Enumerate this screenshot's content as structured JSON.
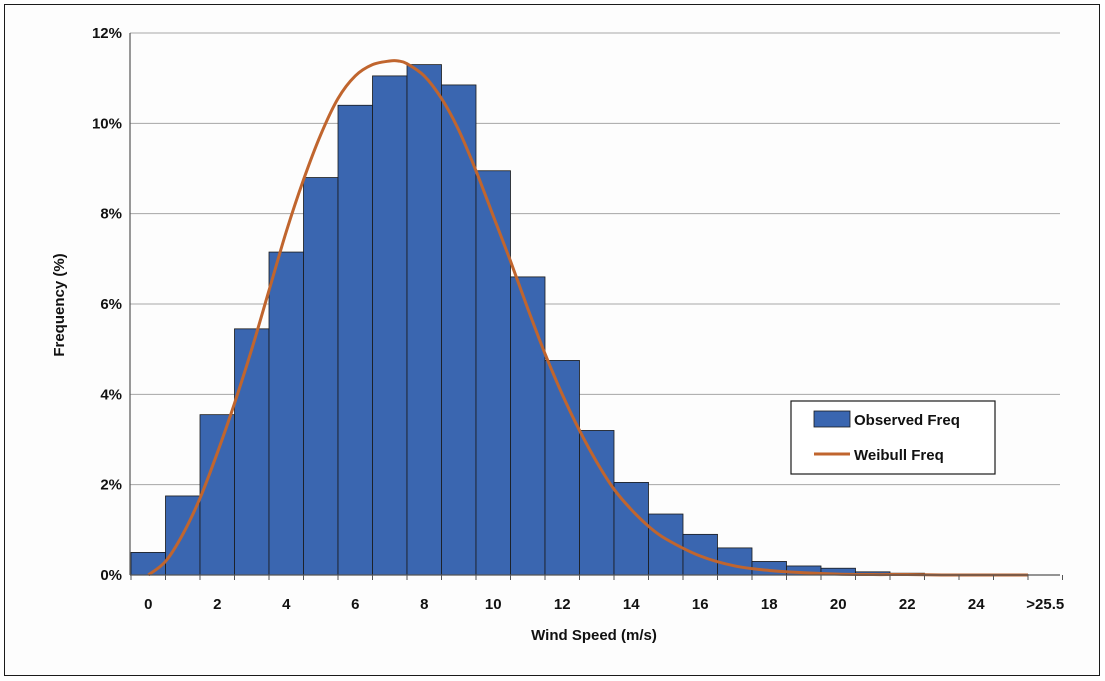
{
  "chart_data": {
    "type": "bar",
    "title": "",
    "xlabel": "Wind Speed (m/s)",
    "ylabel": "Frequency (%)",
    "ylim": [
      0,
      12
    ],
    "yticks": [
      "0%",
      "2%",
      "4%",
      "6%",
      "8%",
      "10%",
      "12%"
    ],
    "xtick_labels": [
      "0",
      "2",
      "4",
      "6",
      "8",
      "10",
      "12",
      "14",
      "16",
      "18",
      "20",
      "22",
      "24",
      ">25.5"
    ],
    "grid": "horizontal",
    "legend_position": "right",
    "categories": [
      "0",
      "1",
      "2",
      "3",
      "4",
      "5",
      "6",
      "7",
      "8",
      "9",
      "10",
      "11",
      "12",
      "13",
      "14",
      "15",
      "16",
      "17",
      "18",
      "19",
      "20",
      "21",
      "22",
      "23",
      "24",
      ">25.5"
    ],
    "series": [
      {
        "name": "Observed Freq",
        "type": "bar",
        "color": "#3a66b0",
        "values": [
          0.5,
          1.75,
          3.55,
          5.45,
          7.15,
          8.8,
          10.4,
          11.05,
          11.3,
          10.85,
          8.95,
          6.6,
          4.75,
          3.2,
          2.05,
          1.35,
          0.9,
          0.6,
          0.3,
          0.2,
          0.15,
          0.07,
          0.04,
          0.02,
          0.01,
          0.01
        ]
      },
      {
        "name": "Weibull Freq",
        "type": "line",
        "color": "#c0652e",
        "x": [
          0,
          0.5,
          1,
          1.5,
          2,
          2.5,
          3,
          3.5,
          4,
          4.5,
          5,
          5.5,
          6,
          6.5,
          7,
          7.25,
          7.5,
          8,
          8.5,
          9,
          9.5,
          10,
          10.5,
          11,
          11.5,
          12,
          12.5,
          13,
          13.5,
          14,
          14.5,
          15,
          16,
          17,
          18,
          19,
          20,
          21,
          22,
          23,
          24,
          25.5
        ],
        "values": [
          0,
          0.3,
          0.9,
          1.7,
          2.7,
          3.8,
          5.0,
          6.3,
          7.6,
          8.75,
          9.75,
          10.55,
          11.05,
          11.3,
          11.38,
          11.38,
          11.32,
          11.05,
          10.55,
          9.85,
          8.95,
          7.95,
          6.95,
          5.9,
          4.9,
          4.0,
          3.2,
          2.5,
          1.9,
          1.45,
          1.08,
          0.8,
          0.42,
          0.2,
          0.1,
          0.05,
          0.02,
          0.01,
          0.01,
          0.0,
          0.0,
          0.0
        ]
      }
    ]
  }
}
